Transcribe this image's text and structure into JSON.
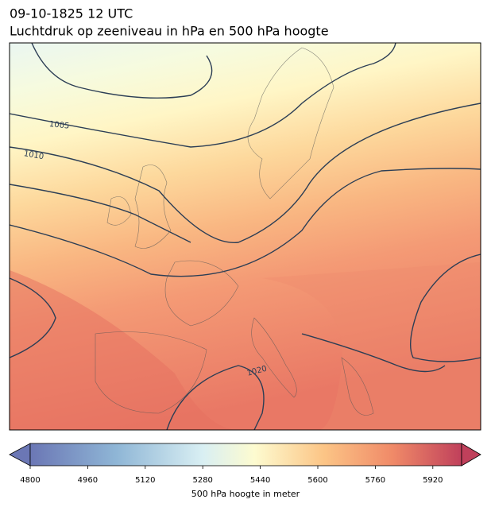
{
  "header": {
    "date": "09-10-1825 12 UTC",
    "title": "Luchtdruk op zeeniveau in hPa en 500 hPa hoogte"
  },
  "map": {
    "contour_labels": [
      1005,
      1010,
      1020
    ]
  },
  "colorbar": {
    "range": [
      4800,
      6000
    ],
    "ticks": [
      4800,
      4960,
      5120,
      5280,
      5440,
      5600,
      5760,
      5920
    ],
    "label": "500 hPa hoogte in meter"
  }
}
